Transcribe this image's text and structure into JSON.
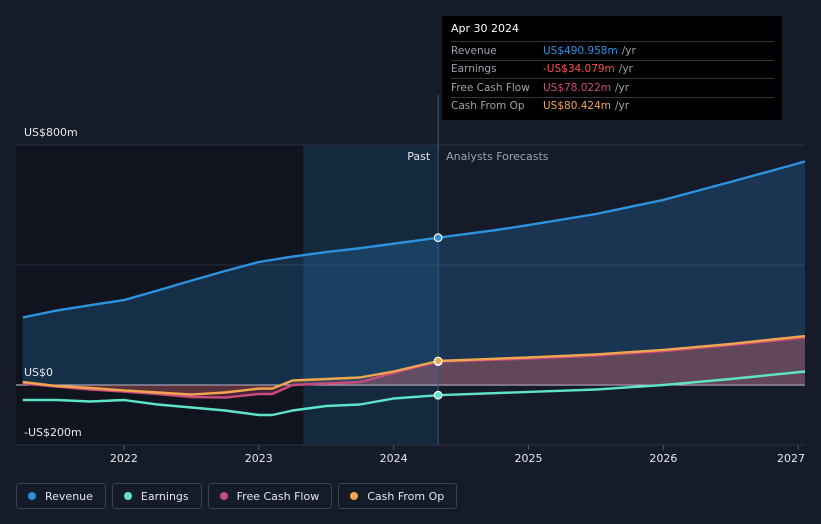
{
  "colors": {
    "revenue": "#2d93e0",
    "earnings": "#5fe3c8",
    "fcf": "#c94a7c",
    "cfo": "#f0a64f",
    "background": "#151b29"
  },
  "tooltip": {
    "date": "Apr 30 2024",
    "rows": [
      {
        "label": "Revenue",
        "value": "US$490.958m",
        "unit": "/yr",
        "color": "#2d93e0"
      },
      {
        "label": "Earnings",
        "value": "-US$34.079m",
        "unit": "/yr",
        "color": "#ff4d4d"
      },
      {
        "label": "Free Cash Flow",
        "value": "US$78.022m",
        "unit": "/yr",
        "color": "#c94a7c"
      },
      {
        "label": "Cash From Op",
        "value": "US$80.424m",
        "unit": "/yr",
        "color": "#f0a64f"
      }
    ]
  },
  "legend": [
    {
      "label": "Revenue",
      "color": "#2d93e0"
    },
    {
      "label": "Earnings",
      "color": "#5fe3c8"
    },
    {
      "label": "Free Cash Flow",
      "color": "#c94a7c"
    },
    {
      "label": "Cash From Op",
      "color": "#f0a64f"
    }
  ],
  "chart_data": {
    "type": "line",
    "title": "",
    "past_label": "Past",
    "forecast_label": "Analysts Forecasts",
    "divider_x": 2024.33,
    "forecast_start_x": 2023.33,
    "ylim": [
      -200,
      800
    ],
    "y_ticks": [
      {
        "value": 800,
        "label": "US$800m"
      },
      {
        "value": 0,
        "label": "US$0"
      },
      {
        "value": -200,
        "label": "-US$200m"
      }
    ],
    "x_ticks": [
      {
        "value": 2022,
        "label": "2022"
      },
      {
        "value": 2023,
        "label": "2023"
      },
      {
        "value": 2024,
        "label": "2024"
      },
      {
        "value": 2025,
        "label": "2025"
      },
      {
        "value": 2026,
        "label": "2026"
      },
      {
        "value": 2027,
        "label": "2027"
      }
    ],
    "xlim": [
      2021.2,
      2027.05
    ],
    "series": [
      {
        "name": "Revenue",
        "key": "revenue",
        "x": [
          2021.25,
          2021.5,
          2021.75,
          2022.0,
          2022.25,
          2022.5,
          2022.75,
          2023.0,
          2023.25,
          2023.5,
          2023.75,
          2024.0,
          2024.33,
          2024.75,
          2025.0,
          2025.5,
          2026.0,
          2026.5,
          2027.05
        ],
        "y": [
          225,
          248,
          266,
          283,
          315,
          348,
          380,
          410,
          428,
          443,
          456,
          471,
          491,
          516,
          533,
          570,
          617,
          677,
          745
        ]
      },
      {
        "name": "Earnings",
        "key": "earnings",
        "x": [
          2021.25,
          2021.5,
          2021.75,
          2022.0,
          2022.25,
          2022.5,
          2022.75,
          2023.0,
          2023.1,
          2023.25,
          2023.5,
          2023.75,
          2024.0,
          2024.33,
          2025.0,
          2025.5,
          2026.0,
          2026.5,
          2027.05
        ],
        "y": [
          -50,
          -50,
          -55,
          -50,
          -65,
          -75,
          -85,
          -100,
          -100,
          -85,
          -70,
          -65,
          -45,
          -34,
          -23,
          -15,
          0,
          20,
          45
        ]
      },
      {
        "name": "Free Cash Flow",
        "key": "fcf",
        "x": [
          2021.25,
          2021.5,
          2021.75,
          2022.0,
          2022.25,
          2022.5,
          2022.75,
          2023.0,
          2023.1,
          2023.25,
          2023.5,
          2023.75,
          2024.0,
          2024.33,
          2025.0,
          2025.5,
          2026.0,
          2026.5,
          2027.05
        ],
        "y": [
          5,
          -5,
          -15,
          -22,
          -30,
          -40,
          -42,
          -30,
          -30,
          0,
          5,
          10,
          40,
          78,
          88,
          98,
          113,
          133,
          158
        ]
      },
      {
        "name": "Cash From Op",
        "key": "cfo",
        "x": [
          2021.25,
          2021.5,
          2021.75,
          2022.0,
          2022.25,
          2022.5,
          2022.75,
          2023.0,
          2023.1,
          2023.25,
          2023.5,
          2023.75,
          2024.0,
          2024.33,
          2025.0,
          2025.5,
          2026.0,
          2026.5,
          2027.05
        ],
        "y": [
          10,
          -3,
          -10,
          -18,
          -25,
          -32,
          -25,
          -12,
          -12,
          15,
          20,
          25,
          45,
          80,
          92,
          102,
          117,
          137,
          163
        ]
      }
    ]
  }
}
